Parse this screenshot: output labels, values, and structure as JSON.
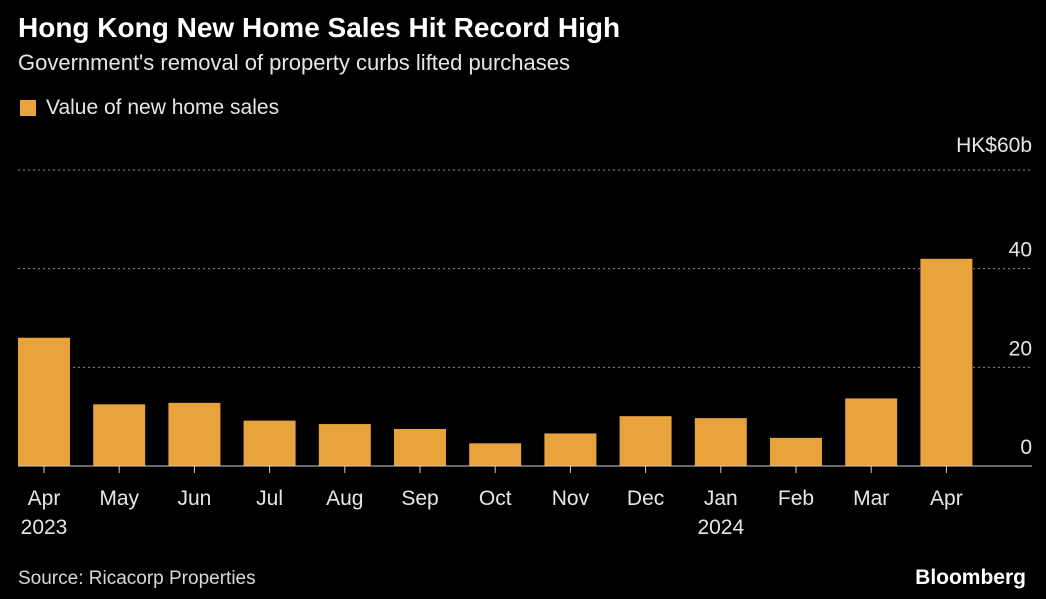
{
  "header": {
    "title": "Hong Kong New Home Sales Hit Record High",
    "subtitle": "Government's removal of property curbs lifted purchases"
  },
  "legend": {
    "label": "Value of new home sales"
  },
  "colors": {
    "bar": "#E8A33D",
    "grid": "#8a8a8a",
    "axis_text": "#e6e6e6",
    "background": "#000000"
  },
  "chart_data": {
    "type": "bar",
    "title": "Hong Kong New Home Sales Hit Record High",
    "subtitle": "Government's removal of property curbs lifted purchases",
    "series": [
      {
        "name": "Value of new home sales",
        "values": [
          26,
          12.5,
          12.8,
          9.2,
          8.5,
          7.5,
          4.6,
          6.6,
          10.1,
          9.7,
          5.7,
          13.7,
          42
        ]
      }
    ],
    "categories": [
      "Apr",
      "May",
      "Jun",
      "Jul",
      "Aug",
      "Sep",
      "Oct",
      "Nov",
      "Dec",
      "Jan",
      "Feb",
      "Mar",
      "Apr"
    ],
    "year_labels": [
      "2023",
      "",
      "",
      "",
      "",
      "",
      "",
      "",
      "",
      "2024",
      "",
      "",
      ""
    ],
    "ylim": [
      0,
      60
    ],
    "yticks": [
      0,
      20,
      40,
      60
    ],
    "ytick_labels": [
      "0",
      "20",
      "40",
      "HK$60b"
    ],
    "xlabel": "",
    "ylabel": "",
    "grid": true
  },
  "footer": {
    "source": "Source: Ricacorp Properties",
    "brand": "Bloomberg"
  }
}
